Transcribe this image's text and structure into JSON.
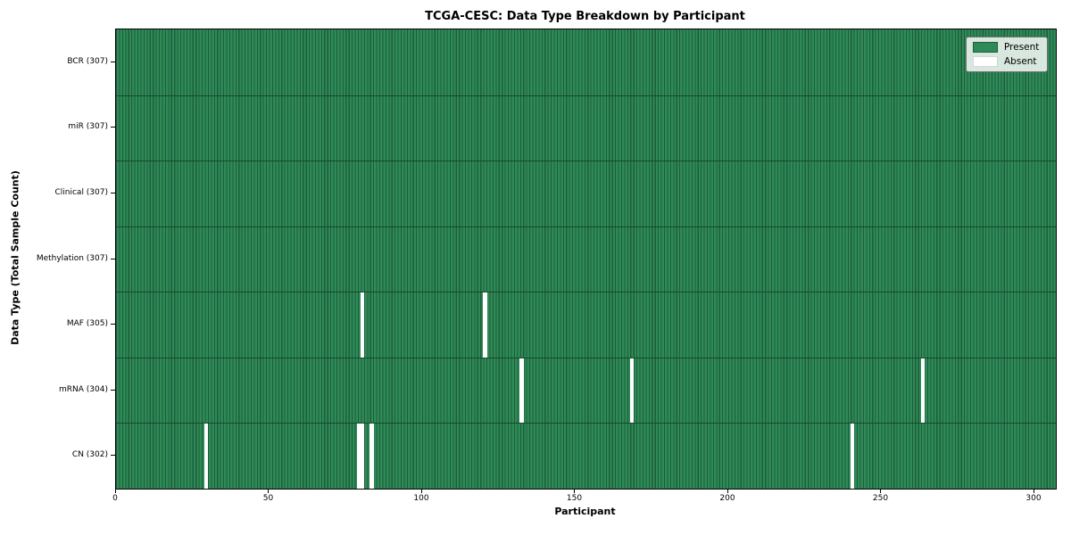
{
  "figure": {
    "title": "TCGA-CESC: Data Type Breakdown by Participant",
    "xlabel": "Participant",
    "ylabel": "Data Type (Total Sample Count)"
  },
  "legend": {
    "items": [
      {
        "label": "Present",
        "color": "#2e8b57",
        "edge": "#1e5c3b"
      },
      {
        "label": "Absent",
        "color": "#ffffff",
        "edge": "#d6d6d6"
      }
    ]
  },
  "chart_data": {
    "type": "heatmap",
    "title": "TCGA-CESC: Data Type Breakdown by Participant",
    "xlabel": "Participant",
    "ylabel": "Data Type (Total Sample Count)",
    "n_participants": 307,
    "xlim": [
      0,
      307
    ],
    "x_ticks": [
      0,
      50,
      100,
      150,
      200,
      250,
      300
    ],
    "grid": false,
    "legend_position": "upper right",
    "legend_entries": [
      "Present",
      "Absent"
    ],
    "rows": [
      {
        "label": "BCR (307)",
        "name": "BCR",
        "present_count": 307,
        "absent_participants": []
      },
      {
        "label": "miR (307)",
        "name": "miR",
        "present_count": 307,
        "absent_participants": []
      },
      {
        "label": "Clinical (307)",
        "name": "Clinical",
        "present_count": 307,
        "absent_participants": []
      },
      {
        "label": "Methylation (307)",
        "name": "Methylation",
        "present_count": 307,
        "absent_participants": []
      },
      {
        "label": "MAF (305)",
        "name": "MAF",
        "present_count": 305,
        "absent_participants": [
          80,
          120
        ]
      },
      {
        "label": "mRNA (304)",
        "name": "mRNA",
        "present_count": 304,
        "absent_participants": [
          132,
          168,
          263
        ]
      },
      {
        "label": "CN (302)",
        "name": "CN",
        "present_count": 302,
        "absent_participants": [
          29,
          79,
          80,
          83,
          240
        ]
      }
    ],
    "colors": {
      "present": "#2e8b57",
      "present_edge": "#1e5c3b",
      "absent": "#ffffff",
      "row_separator": "#17482f",
      "axis": "#000000"
    }
  }
}
